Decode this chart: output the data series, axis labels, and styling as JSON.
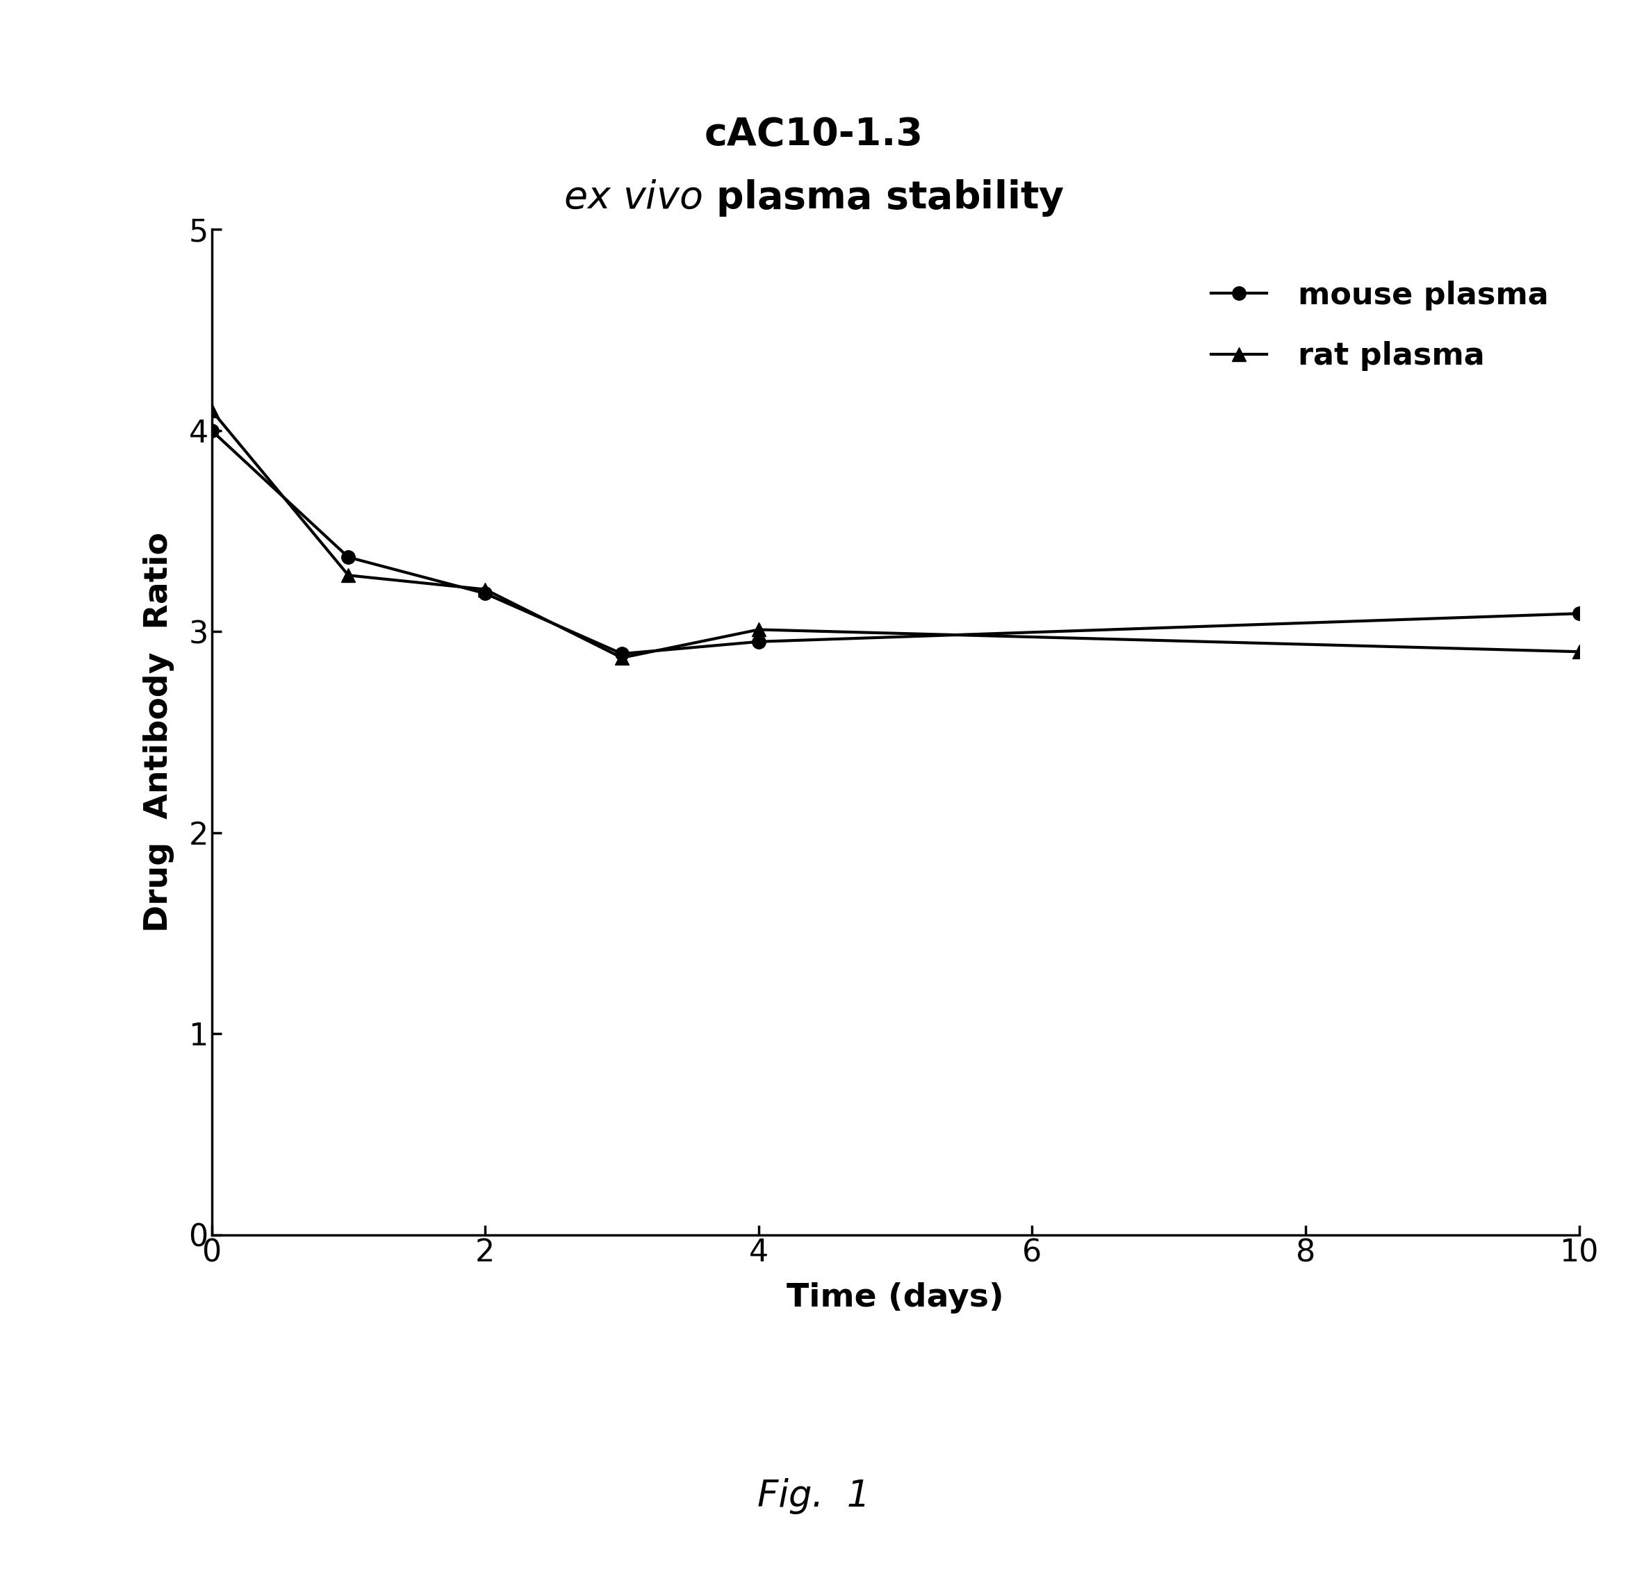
{
  "title_line1": "cAC10-1.3",
  "xlabel": "Time (days)",
  "ylabel": "Drug  Antibody  Ratio",
  "xlim": [
    0,
    10
  ],
  "ylim": [
    0,
    5
  ],
  "xticks": [
    0,
    2,
    4,
    6,
    8,
    10
  ],
  "yticks": [
    0,
    1,
    2,
    3,
    4,
    5
  ],
  "mouse_x": [
    0,
    1,
    2,
    3,
    4,
    10
  ],
  "mouse_y": [
    4.0,
    3.37,
    3.19,
    2.89,
    2.95,
    3.09
  ],
  "rat_x": [
    0,
    1,
    2,
    3,
    4,
    10
  ],
  "rat_y": [
    4.1,
    3.28,
    3.21,
    2.87,
    3.01,
    2.9
  ],
  "line_color": "#000000",
  "line_width": 3.0,
  "marker_size": 14,
  "mouse_marker": "o",
  "rat_marker": "^",
  "legend_label_mouse": "mouse plasma",
  "legend_label_rat": "rat plasma",
  "fig_label": "Fig.  1",
  "background_color": "#ffffff",
  "title_fontsize": 40,
  "subtitle_fontsize": 40,
  "axis_label_fontsize": 34,
  "tick_fontsize": 32,
  "legend_fontsize": 32,
  "fig_label_fontsize": 38
}
